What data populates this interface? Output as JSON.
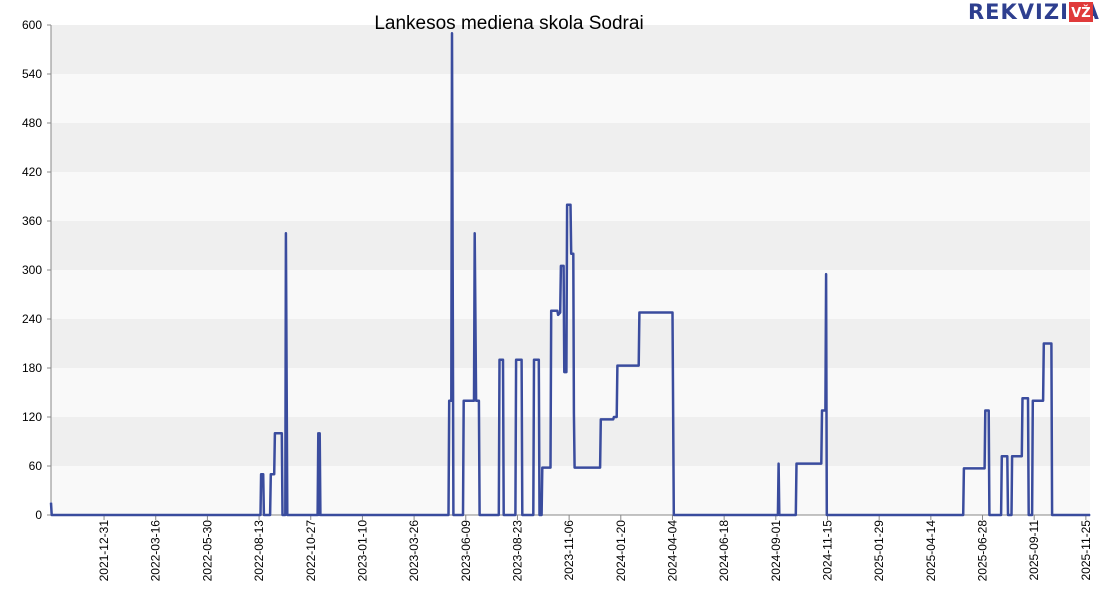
{
  "chart_data": {
    "type": "line",
    "title": "Lankesos mediena skola Sodrai",
    "xlabel": "",
    "ylabel": "",
    "ylim": [
      0,
      600
    ],
    "yticks": [
      0,
      60,
      120,
      180,
      240,
      300,
      360,
      420,
      480,
      540,
      600
    ],
    "xlim": [
      "2021-10-15",
      "2025-12-01"
    ],
    "xticks": [
      "2021-12-31",
      "2022-03-16",
      "2022-05-30",
      "2022-08-13",
      "2022-10-27",
      "2023-01-10",
      "2023-03-26",
      "2023-06-09",
      "2023-08-23",
      "2023-11-06",
      "2024-01-20",
      "2024-04-04",
      "2024-06-18",
      "2024-09-01",
      "2024-11-15",
      "2025-01-29",
      "2025-04-14",
      "2025-06-28",
      "2025-09-11",
      "2025-11-25"
    ],
    "grid": "horizontal bands",
    "series": [
      {
        "color": "#3a4c9e",
        "points": [
          [
            "2021-10-15",
            15
          ],
          [
            "2021-10-16",
            0
          ],
          [
            "2022-08-15",
            0
          ],
          [
            "2022-08-16",
            50
          ],
          [
            "2022-08-19",
            50
          ],
          [
            "2022-08-20",
            0
          ],
          [
            "2022-08-29",
            0
          ],
          [
            "2022-08-30",
            50
          ],
          [
            "2022-09-04",
            50
          ],
          [
            "2022-09-05",
            100
          ],
          [
            "2022-09-15",
            100
          ],
          [
            "2022-09-16",
            0
          ],
          [
            "2022-09-20",
            0
          ],
          [
            "2022-09-21",
            345
          ],
          [
            "2022-09-23",
            0
          ],
          [
            "2022-11-06",
            0
          ],
          [
            "2022-11-07",
            100
          ],
          [
            "2022-11-08",
            0
          ],
          [
            "2022-11-09",
            100
          ],
          [
            "2022-11-10",
            0
          ],
          [
            "2023-05-15",
            0
          ],
          [
            "2023-05-16",
            140
          ],
          [
            "2023-05-19",
            140
          ],
          [
            "2023-05-20",
            590
          ],
          [
            "2023-05-22",
            0
          ],
          [
            "2023-06-05",
            0
          ],
          [
            "2023-06-06",
            140
          ],
          [
            "2023-06-21",
            140
          ],
          [
            "2023-06-22",
            345
          ],
          [
            "2023-06-24",
            140
          ],
          [
            "2023-06-28",
            140
          ],
          [
            "2023-06-29",
            0
          ],
          [
            "2023-07-27",
            0
          ],
          [
            "2023-07-28",
            190
          ],
          [
            "2023-08-02",
            190
          ],
          [
            "2023-08-03",
            0
          ],
          [
            "2023-08-20",
            0
          ],
          [
            "2023-08-21",
            190
          ],
          [
            "2023-08-29",
            190
          ],
          [
            "2023-08-30",
            0
          ],
          [
            "2023-09-15",
            0
          ],
          [
            "2023-09-16",
            190
          ],
          [
            "2023-09-23",
            190
          ],
          [
            "2023-09-24",
            0
          ],
          [
            "2023-09-27",
            0
          ],
          [
            "2023-09-28",
            58
          ],
          [
            "2023-10-10",
            58
          ],
          [
            "2023-10-11",
            250
          ],
          [
            "2023-10-20",
            250
          ],
          [
            "2023-10-21",
            245
          ],
          [
            "2023-10-24",
            248
          ],
          [
            "2023-10-25",
            305
          ],
          [
            "2023-10-29",
            305
          ],
          [
            "2023-10-30",
            175
          ],
          [
            "2023-11-02",
            175
          ],
          [
            "2023-11-03",
            380
          ],
          [
            "2023-11-08",
            380
          ],
          [
            "2023-11-09",
            320
          ],
          [
            "2023-11-12",
            320
          ],
          [
            "2023-11-13",
            125
          ],
          [
            "2023-11-14",
            58
          ],
          [
            "2023-12-21",
            58
          ],
          [
            "2023-12-22",
            117
          ],
          [
            "2024-01-09",
            117
          ],
          [
            "2024-01-10",
            120
          ],
          [
            "2024-01-14",
            120
          ],
          [
            "2024-01-15",
            183
          ],
          [
            "2024-02-15",
            183
          ],
          [
            "2024-02-16",
            248
          ],
          [
            "2024-04-04",
            248
          ],
          [
            "2024-04-06",
            0
          ],
          [
            "2024-09-04",
            0
          ],
          [
            "2024-09-05",
            63
          ],
          [
            "2024-09-06",
            0
          ],
          [
            "2024-09-30",
            0
          ],
          [
            "2024-10-01",
            63
          ],
          [
            "2024-11-06",
            63
          ],
          [
            "2024-11-07",
            128
          ],
          [
            "2024-11-12",
            128
          ],
          [
            "2024-11-13",
            295
          ],
          [
            "2024-11-14",
            0
          ],
          [
            "2025-05-31",
            0
          ],
          [
            "2025-06-01",
            57
          ],
          [
            "2025-07-01",
            57
          ],
          [
            "2025-07-02",
            128
          ],
          [
            "2025-07-07",
            128
          ],
          [
            "2025-07-08",
            0
          ],
          [
            "2025-07-25",
            0
          ],
          [
            "2025-07-26",
            72
          ],
          [
            "2025-08-03",
            72
          ],
          [
            "2025-08-04",
            0
          ],
          [
            "2025-08-09",
            0
          ],
          [
            "2025-08-10",
            72
          ],
          [
            "2025-08-24",
            72
          ],
          [
            "2025-08-25",
            143
          ],
          [
            "2025-09-02",
            143
          ],
          [
            "2025-09-03",
            0
          ],
          [
            "2025-09-08",
            0
          ],
          [
            "2025-09-09",
            140
          ],
          [
            "2025-09-24",
            140
          ],
          [
            "2025-09-25",
            210
          ],
          [
            "2025-10-06",
            210
          ],
          [
            "2025-10-07",
            0
          ],
          [
            "2025-12-01",
            0
          ]
        ]
      }
    ]
  },
  "brand": {
    "logo_text": "REKVIZITAI",
    "logo_badge": "VŽ",
    "colors": {
      "logo": "#2e3f8f",
      "badge": "#e03a3a"
    }
  }
}
